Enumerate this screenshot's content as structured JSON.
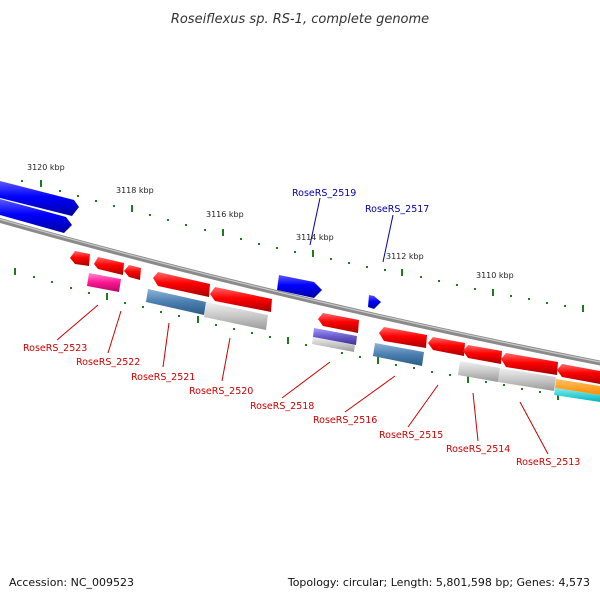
{
  "title": "Roseiflexus sp. RS-1, complete genome",
  "footer": {
    "accession": "Accession: NC_009523",
    "summary": "Topology: circular; Length: 5,801,598 bp; Genes: 4,573"
  },
  "colors": {
    "backbone": "#8a8a8a",
    "tick": "#1f7a1f",
    "label_forward": "#0000aa",
    "label_reverse": "#cc0000"
  },
  "ruler": [
    "3120 kbp",
    "3118 kbp",
    "3116 kbp",
    "3114 kbp",
    "3112 kbp",
    "3110 kbp"
  ],
  "genes_forward": [
    {
      "label": "RoseRS_2519"
    },
    {
      "label": "RoseRS_2517"
    }
  ],
  "genes_reverse": [
    {
      "label": "RoseRS_2523"
    },
    {
      "label": "RoseRS_2522"
    },
    {
      "label": "RoseRS_2521"
    },
    {
      "label": "RoseRS_2520"
    },
    {
      "label": "RoseRS_2518"
    },
    {
      "label": "RoseRS_2516"
    },
    {
      "label": "RoseRS_2515"
    },
    {
      "label": "RoseRS_2514"
    },
    {
      "label": "RoseRS_2513"
    }
  ]
}
